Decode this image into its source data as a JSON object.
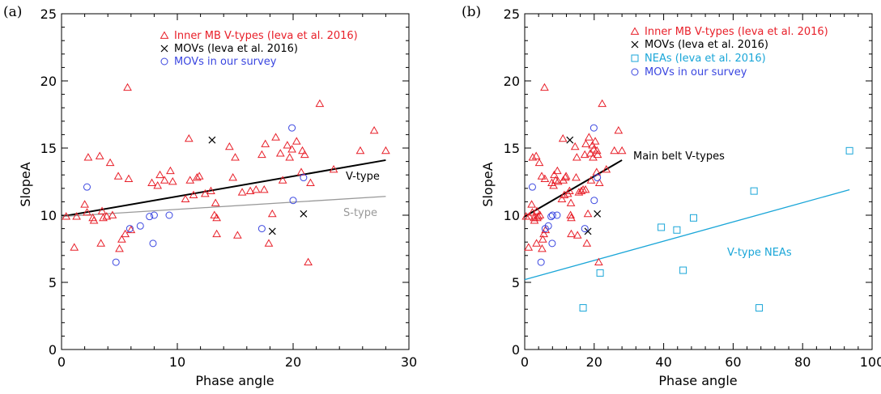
{
  "colors": {
    "inner_mb": "#e8202a",
    "movs": "#000000",
    "movs_survey": "#3a46e0",
    "neas": "#1aa6d8",
    "s_type": "#999999",
    "axis": "#000000"
  },
  "chart_data": [
    {
      "type": "scatter",
      "panel_label": "(a)",
      "xlabel": "Phase angle",
      "ylabel": "SlopeA",
      "xlim": [
        0,
        30
      ],
      "ylim": [
        0,
        25
      ],
      "xticks": [
        "0",
        "10",
        "20",
        "30"
      ],
      "yticks": [
        "0",
        "5",
        "10",
        "15",
        "20",
        "25"
      ],
      "grid": false,
      "legend_position": "top-right",
      "series": [
        {
          "name": "Inner MB V-types (Ieva et al. 2016)",
          "marker": "triangle",
          "color": "#e8202a",
          "points": [
            [
              0.4,
              9.9
            ],
            [
              1.1,
              7.6
            ],
            [
              1.3,
              9.9
            ],
            [
              2.0,
              10.8
            ],
            [
              2.2,
              10.2
            ],
            [
              2.3,
              14.3
            ],
            [
              2.7,
              9.8
            ],
            [
              2.8,
              9.6
            ],
            [
              3.3,
              14.4
            ],
            [
              3.4,
              7.9
            ],
            [
              3.5,
              10.3
            ],
            [
              3.6,
              9.8
            ],
            [
              3.9,
              9.9
            ],
            [
              4.2,
              13.9
            ],
            [
              4.4,
              10.0
            ],
            [
              4.9,
              12.9
            ],
            [
              5.0,
              7.5
            ],
            [
              5.2,
              8.2
            ],
            [
              5.5,
              8.6
            ],
            [
              5.7,
              19.5
            ],
            [
              5.8,
              12.7
            ],
            [
              6.0,
              8.9
            ],
            [
              7.8,
              12.4
            ],
            [
              8.3,
              12.2
            ],
            [
              8.5,
              13.0
            ],
            [
              8.9,
              12.6
            ],
            [
              9.4,
              13.3
            ],
            [
              9.6,
              12.5
            ],
            [
              10.7,
              11.2
            ],
            [
              11.0,
              15.7
            ],
            [
              11.1,
              12.6
            ],
            [
              11.4,
              11.5
            ],
            [
              11.7,
              12.8
            ],
            [
              11.9,
              12.9
            ],
            [
              12.4,
              11.6
            ],
            [
              12.9,
              11.8
            ],
            [
              13.2,
              10.0
            ],
            [
              13.3,
              10.9
            ],
            [
              13.4,
              9.8
            ],
            [
              13.4,
              8.6
            ],
            [
              14.5,
              15.1
            ],
            [
              14.8,
              12.8
            ],
            [
              15.0,
              14.3
            ],
            [
              15.2,
              8.5
            ],
            [
              15.6,
              11.7
            ],
            [
              16.3,
              11.8
            ],
            [
              16.8,
              11.9
            ],
            [
              17.3,
              14.5
            ],
            [
              17.5,
              11.9
            ],
            [
              17.6,
              15.3
            ],
            [
              17.9,
              7.9
            ],
            [
              18.2,
              10.1
            ],
            [
              18.5,
              15.8
            ],
            [
              18.9,
              14.6
            ],
            [
              19.1,
              12.6
            ],
            [
              19.5,
              15.2
            ],
            [
              19.7,
              14.3
            ],
            [
              19.9,
              14.9
            ],
            [
              20.3,
              15.5
            ],
            [
              20.7,
              13.2
            ],
            [
              20.8,
              14.8
            ],
            [
              21.0,
              14.5
            ],
            [
              21.3,
              6.5
            ],
            [
              21.5,
              12.4
            ],
            [
              22.3,
              18.3
            ],
            [
              23.5,
              13.4
            ],
            [
              25.8,
              14.8
            ],
            [
              27.0,
              16.3
            ],
            [
              28.0,
              14.8
            ]
          ]
        },
        {
          "name": "MOVs (Ieva et al. 2016)",
          "marker": "x",
          "color": "#000000",
          "points": [
            [
              13.0,
              15.6
            ],
            [
              18.2,
              8.8
            ],
            [
              20.9,
              10.1
            ]
          ]
        },
        {
          "name": "MOVs in our survey",
          "marker": "circle",
          "color": "#3a46e0",
          "points": [
            [
              2.2,
              12.1
            ],
            [
              4.7,
              6.5
            ],
            [
              5.9,
              9.0
            ],
            [
              6.8,
              9.2
            ],
            [
              7.6,
              9.9
            ],
            [
              7.9,
              7.9
            ],
            [
              8.0,
              10.0
            ],
            [
              9.3,
              10.0
            ],
            [
              17.3,
              9.0
            ],
            [
              19.9,
              16.5
            ],
            [
              20.0,
              11.1
            ],
            [
              20.9,
              12.8
            ]
          ]
        }
      ],
      "fit_lines": [
        {
          "label": "V-type",
          "color": "#000000",
          "from": [
            0,
            9.9
          ],
          "to": [
            28,
            14.1
          ]
        },
        {
          "label": "S-type",
          "color": "#999999",
          "from": [
            0,
            9.9
          ],
          "to": [
            28,
            11.4
          ]
        }
      ]
    },
    {
      "type": "scatter",
      "panel_label": "(b)",
      "xlabel": "Phase angle",
      "ylabel": "SlopeA",
      "xlim": [
        0,
        100
      ],
      "ylim": [
        0,
        25
      ],
      "xticks": [
        "0",
        "20",
        "40",
        "60",
        "80",
        "100"
      ],
      "yticks": [
        "0",
        "5",
        "10",
        "15",
        "20",
        "25"
      ],
      "grid": false,
      "legend_position": "top-right",
      "series": [
        {
          "name": "Inner MB V-types (Ieva et al. 2016)",
          "marker": "triangle",
          "color": "#e8202a",
          "points": [
            [
              0.4,
              9.9
            ],
            [
              1.1,
              7.6
            ],
            [
              1.3,
              9.9
            ],
            [
              2.0,
              10.8
            ],
            [
              2.2,
              10.2
            ],
            [
              2.3,
              14.3
            ],
            [
              2.7,
              9.8
            ],
            [
              2.8,
              9.6
            ],
            [
              3.3,
              14.4
            ],
            [
              3.4,
              7.9
            ],
            [
              3.5,
              10.3
            ],
            [
              3.6,
              9.8
            ],
            [
              3.9,
              9.9
            ],
            [
              4.2,
              13.9
            ],
            [
              4.4,
              10.0
            ],
            [
              4.9,
              12.9
            ],
            [
              5.0,
              7.5
            ],
            [
              5.2,
              8.2
            ],
            [
              5.5,
              8.6
            ],
            [
              5.7,
              19.5
            ],
            [
              5.8,
              12.7
            ],
            [
              6.0,
              8.9
            ],
            [
              7.8,
              12.4
            ],
            [
              8.3,
              12.2
            ],
            [
              8.5,
              13.0
            ],
            [
              8.9,
              12.6
            ],
            [
              9.4,
              13.3
            ],
            [
              9.6,
              12.5
            ],
            [
              10.7,
              11.2
            ],
            [
              11.0,
              15.7
            ],
            [
              11.1,
              12.6
            ],
            [
              11.4,
              11.5
            ],
            [
              11.7,
              12.8
            ],
            [
              11.9,
              12.9
            ],
            [
              12.4,
              11.6
            ],
            [
              12.9,
              11.8
            ],
            [
              13.2,
              10.0
            ],
            [
              13.3,
              10.9
            ],
            [
              13.4,
              9.8
            ],
            [
              13.4,
              8.6
            ],
            [
              14.5,
              15.1
            ],
            [
              14.8,
              12.8
            ],
            [
              15.0,
              14.3
            ],
            [
              15.2,
              8.5
            ],
            [
              15.6,
              11.7
            ],
            [
              16.3,
              11.8
            ],
            [
              16.8,
              11.9
            ],
            [
              17.3,
              14.5
            ],
            [
              17.5,
              11.9
            ],
            [
              17.6,
              15.3
            ],
            [
              17.9,
              7.9
            ],
            [
              18.2,
              10.1
            ],
            [
              18.5,
              15.8
            ],
            [
              18.9,
              14.6
            ],
            [
              19.1,
              12.6
            ],
            [
              19.5,
              15.2
            ],
            [
              19.7,
              14.3
            ],
            [
              19.9,
              14.9
            ],
            [
              20.3,
              15.5
            ],
            [
              20.7,
              13.2
            ],
            [
              20.8,
              14.8
            ],
            [
              21.0,
              14.5
            ],
            [
              21.3,
              6.5
            ],
            [
              21.5,
              12.4
            ],
            [
              22.3,
              18.3
            ],
            [
              23.5,
              13.4
            ],
            [
              25.8,
              14.8
            ],
            [
              27.0,
              16.3
            ],
            [
              28.0,
              14.8
            ]
          ]
        },
        {
          "name": "MOVs (Ieva et al. 2016)",
          "marker": "x",
          "color": "#000000",
          "points": [
            [
              13.0,
              15.6
            ],
            [
              18.2,
              8.8
            ],
            [
              20.9,
              10.1
            ]
          ]
        },
        {
          "name": "NEAs (Ieva et al. 2016)",
          "marker": "square",
          "color": "#1aa6d8",
          "points": [
            [
              16.8,
              3.1
            ],
            [
              21.7,
              5.7
            ],
            [
              39.3,
              9.1
            ],
            [
              43.8,
              8.9
            ],
            [
              45.6,
              5.9
            ],
            [
              48.6,
              9.8
            ],
            [
              66.0,
              11.8
            ],
            [
              67.5,
              3.1
            ],
            [
              93.5,
              14.8
            ]
          ]
        },
        {
          "name": "MOVs in our survey",
          "marker": "circle",
          "color": "#3a46e0",
          "points": [
            [
              2.2,
              12.1
            ],
            [
              4.7,
              6.5
            ],
            [
              5.9,
              9.0
            ],
            [
              6.8,
              9.2
            ],
            [
              7.6,
              9.9
            ],
            [
              7.9,
              7.9
            ],
            [
              8.0,
              10.0
            ],
            [
              9.3,
              10.0
            ],
            [
              17.3,
              9.0
            ],
            [
              19.9,
              16.5
            ],
            [
              20.0,
              11.1
            ],
            [
              20.9,
              12.8
            ]
          ]
        }
      ],
      "fit_lines": [
        {
          "label": "Main belt V-types",
          "color": "#000000",
          "from": [
            0,
            9.9
          ],
          "to": [
            28,
            14.1
          ]
        },
        {
          "label": "V-type NEAs",
          "color": "#1aa6d8",
          "from": [
            0,
            5.2
          ],
          "to": [
            93.5,
            11.9
          ]
        }
      ]
    }
  ]
}
